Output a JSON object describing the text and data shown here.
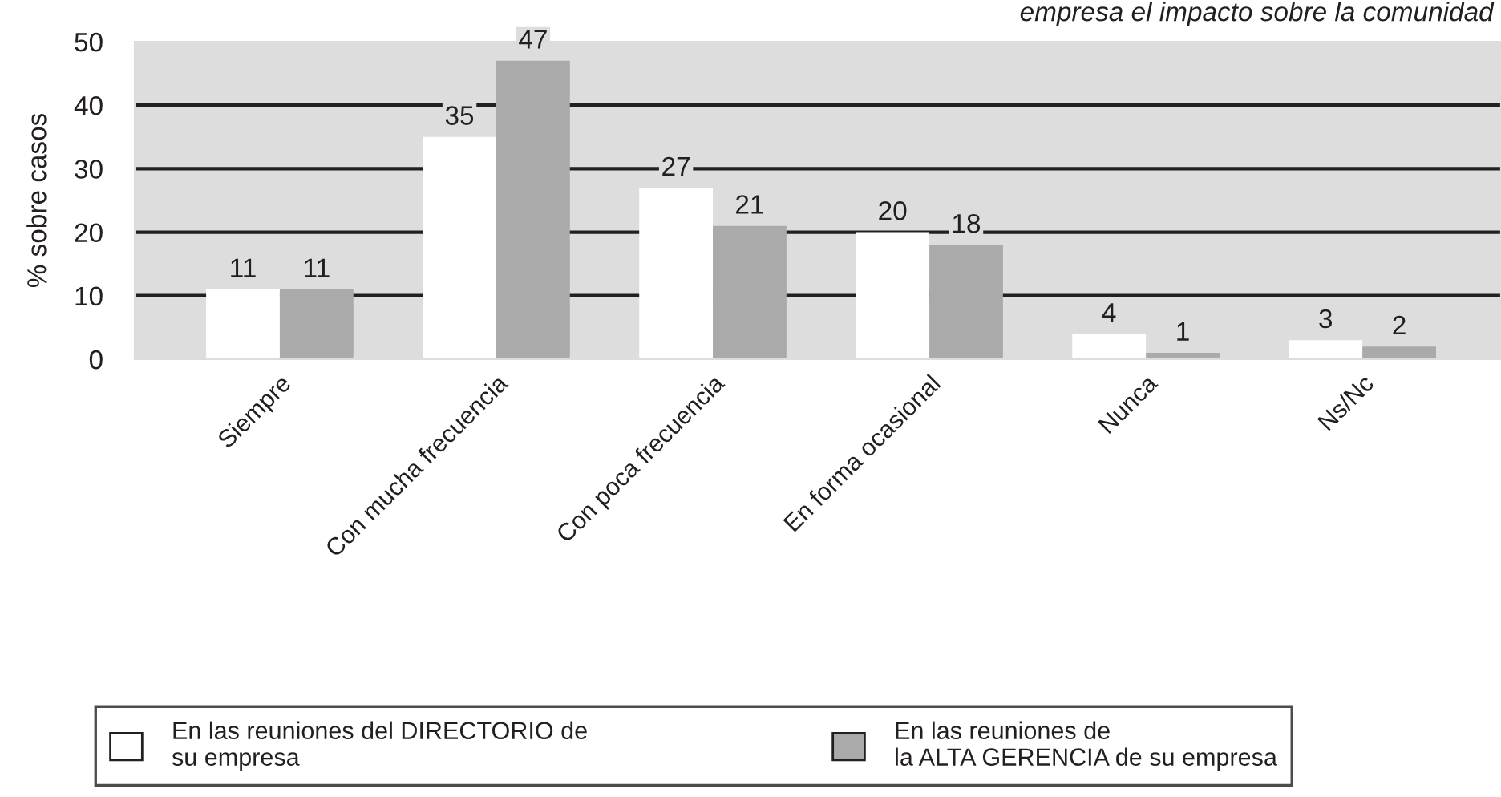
{
  "chart_data": {
    "type": "bar",
    "title": "empresa el impacto sobre la comunidad",
    "ylabel": "% sobre casos",
    "categories": [
      "Siempre",
      "Con mucha frecuencia",
      "Con poca frecuencia",
      "En forma ocasional",
      "Nunca",
      "Ns/Nc"
    ],
    "series": [
      {
        "name": "En las reuniones del DIRECTORIO de\nsu empresa",
        "color": "#ffffff",
        "values": [
          11,
          35,
          27,
          20,
          4,
          3
        ]
      },
      {
        "name": "En las reuniones de\nla ALTA GERENCIA de su empresa",
        "color": "#aaaaaa",
        "values": [
          11,
          47,
          21,
          18,
          1,
          2
        ]
      }
    ],
    "ylim": [
      0,
      50
    ],
    "yticks": [
      0,
      10,
      20,
      30,
      40,
      50
    ],
    "grid": "y",
    "legend": "bottom",
    "data_labels": true
  }
}
